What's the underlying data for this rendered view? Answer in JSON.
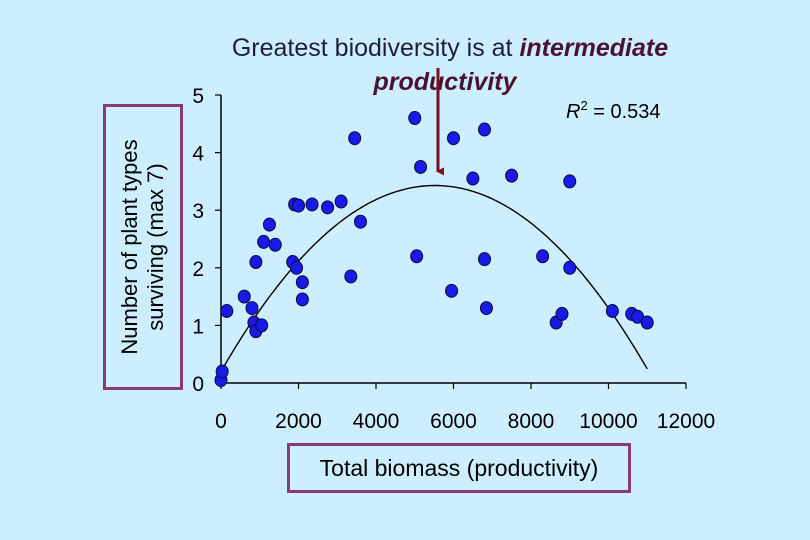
{
  "title": {
    "line1_plain": "Greatest biodiversity is at ",
    "line1_emph": "intermediate",
    "line2_emph": "productivity"
  },
  "colors": {
    "background": "#cdeefe",
    "point_fill": "#1a1ae6",
    "frame": "#8a3a6e",
    "arrow": "#7a1020"
  },
  "chart_data": {
    "type": "scatter",
    "title": "Greatest biodiversity is at intermediate productivity",
    "xlabel": "Total biomass (productivity)",
    "ylabel_line1": "Number of plant types",
    "ylabel_line2": "surviving (max 7)",
    "xlim": [
      0,
      12000
    ],
    "ylim": [
      0,
      5
    ],
    "xticks": [
      0,
      2000,
      4000,
      6000,
      8000,
      10000,
      12000
    ],
    "yticks": [
      0,
      1,
      2,
      3,
      4,
      5
    ],
    "annotation": {
      "prefix": "R",
      "sup": "2",
      "suffix": " = 0.534"
    },
    "fit": {
      "type": "quadratic",
      "coef": [
        0.2,
        0.00117,
        -1.06e-07
      ],
      "x_range": [
        0,
        11000
      ]
    },
    "arrow_target": {
      "x": 5600,
      "y": 3.5
    },
    "points": [
      {
        "x": 0,
        "y": 0.05
      },
      {
        "x": 30,
        "y": 0.2
      },
      {
        "x": 150,
        "y": 1.25
      },
      {
        "x": 600,
        "y": 1.5
      },
      {
        "x": 800,
        "y": 1.3
      },
      {
        "x": 850,
        "y": 1.05
      },
      {
        "x": 900,
        "y": 0.9
      },
      {
        "x": 1050,
        "y": 1.0
      },
      {
        "x": 900,
        "y": 2.1
      },
      {
        "x": 1100,
        "y": 2.45
      },
      {
        "x": 1250,
        "y": 2.75
      },
      {
        "x": 1400,
        "y": 2.4
      },
      {
        "x": 1850,
        "y": 2.1
      },
      {
        "x": 1950,
        "y": 2.0
      },
      {
        "x": 2100,
        "y": 1.75
      },
      {
        "x": 2100,
        "y": 1.45
      },
      {
        "x": 1900,
        "y": 3.1
      },
      {
        "x": 2000,
        "y": 3.08
      },
      {
        "x": 2350,
        "y": 3.1
      },
      {
        "x": 2750,
        "y": 3.05
      },
      {
        "x": 3100,
        "y": 3.15
      },
      {
        "x": 3350,
        "y": 1.85
      },
      {
        "x": 3450,
        "y": 4.25
      },
      {
        "x": 3600,
        "y": 2.8
      },
      {
        "x": 5000,
        "y": 4.6
      },
      {
        "x": 5050,
        "y": 2.2
      },
      {
        "x": 5150,
        "y": 3.75
      },
      {
        "x": 6000,
        "y": 4.25
      },
      {
        "x": 5950,
        "y": 1.6
      },
      {
        "x": 6500,
        "y": 3.55
      },
      {
        "x": 6800,
        "y": 4.4
      },
      {
        "x": 6800,
        "y": 2.15
      },
      {
        "x": 6850,
        "y": 1.3
      },
      {
        "x": 7500,
        "y": 3.6
      },
      {
        "x": 8300,
        "y": 2.2
      },
      {
        "x": 8650,
        "y": 1.05
      },
      {
        "x": 8800,
        "y": 1.2
      },
      {
        "x": 9000,
        "y": 3.5
      },
      {
        "x": 9000,
        "y": 2.0
      },
      {
        "x": 10100,
        "y": 1.25
      },
      {
        "x": 10600,
        "y": 1.2
      },
      {
        "x": 10750,
        "y": 1.15
      },
      {
        "x": 11000,
        "y": 1.05
      }
    ]
  }
}
